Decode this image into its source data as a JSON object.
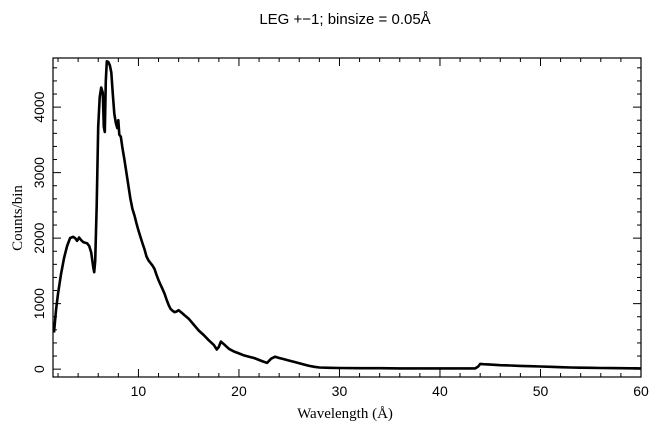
{
  "chart_data": {
    "type": "line",
    "title": "LEG +−1; binsize = 0.05Å",
    "xlabel": "Wavelength (Å)",
    "ylabel": "Counts/bin",
    "xlim": [
      1.5,
      60
    ],
    "ylim": [
      -120,
      4750
    ],
    "x_ticks": [
      10,
      20,
      30,
      40,
      50,
      60
    ],
    "x_tick_labels": [
      "10",
      "20",
      "30",
      "40",
      "50",
      "60"
    ],
    "y_ticks": [
      0,
      1000,
      2000,
      3000,
      4000
    ],
    "y_tick_labels": [
      "0",
      "1000",
      "2000",
      "3000",
      "4000"
    ],
    "grid": false,
    "series": [
      {
        "color": "#000000",
        "points": [
          [
            1.6,
            560
          ],
          [
            1.8,
            900
          ],
          [
            2.0,
            1150
          ],
          [
            2.3,
            1450
          ],
          [
            2.6,
            1700
          ],
          [
            2.9,
            1880
          ],
          [
            3.2,
            2000
          ],
          [
            3.5,
            2020
          ],
          [
            3.7,
            2000
          ],
          [
            3.9,
            1960
          ],
          [
            4.1,
            2010
          ],
          [
            4.3,
            1970
          ],
          [
            4.5,
            1940
          ],
          [
            4.7,
            1930
          ],
          [
            4.9,
            1920
          ],
          [
            5.1,
            1880
          ],
          [
            5.3,
            1780
          ],
          [
            5.5,
            1560
          ],
          [
            5.6,
            1480
          ],
          [
            5.7,
            1650
          ],
          [
            5.85,
            2500
          ],
          [
            6.0,
            3700
          ],
          [
            6.15,
            4150
          ],
          [
            6.3,
            4300
          ],
          [
            6.45,
            4220
          ],
          [
            6.55,
            3700
          ],
          [
            6.65,
            3620
          ],
          [
            6.75,
            4400
          ],
          [
            6.85,
            4700
          ],
          [
            7.0,
            4690
          ],
          [
            7.15,
            4640
          ],
          [
            7.3,
            4530
          ],
          [
            7.45,
            4200
          ],
          [
            7.6,
            3900
          ],
          [
            7.75,
            3760
          ],
          [
            7.9,
            3680
          ],
          [
            8.0,
            3800
          ],
          [
            8.1,
            3580
          ],
          [
            8.25,
            3550
          ],
          [
            8.4,
            3380
          ],
          [
            8.6,
            3200
          ],
          [
            8.8,
            3000
          ],
          [
            9.0,
            2800
          ],
          [
            9.2,
            2600
          ],
          [
            9.4,
            2450
          ],
          [
            9.6,
            2350
          ],
          [
            9.8,
            2230
          ],
          [
            10.0,
            2120
          ],
          [
            10.2,
            2020
          ],
          [
            10.4,
            1920
          ],
          [
            10.6,
            1830
          ],
          [
            10.8,
            1720
          ],
          [
            11.0,
            1660
          ],
          [
            11.2,
            1620
          ],
          [
            11.4,
            1580
          ],
          [
            11.6,
            1530
          ],
          [
            11.8,
            1440
          ],
          [
            12.0,
            1360
          ],
          [
            12.2,
            1290
          ],
          [
            12.4,
            1220
          ],
          [
            12.6,
            1150
          ],
          [
            12.8,
            1060
          ],
          [
            13.0,
            980
          ],
          [
            13.2,
            920
          ],
          [
            13.4,
            890
          ],
          [
            13.6,
            870
          ],
          [
            13.8,
            880
          ],
          [
            14.0,
            900
          ],
          [
            14.3,
            860
          ],
          [
            14.6,
            820
          ],
          [
            15.0,
            770
          ],
          [
            15.5,
            680
          ],
          [
            16.0,
            590
          ],
          [
            16.5,
            520
          ],
          [
            17.0,
            440
          ],
          [
            17.5,
            370
          ],
          [
            17.8,
            300
          ],
          [
            18.0,
            340
          ],
          [
            18.2,
            420
          ],
          [
            18.5,
            380
          ],
          [
            19.0,
            310
          ],
          [
            19.5,
            270
          ],
          [
            20.0,
            240
          ],
          [
            20.5,
            210
          ],
          [
            21.0,
            190
          ],
          [
            21.5,
            170
          ],
          [
            22.0,
            140
          ],
          [
            22.5,
            110
          ],
          [
            22.8,
            95
          ],
          [
            23.2,
            160
          ],
          [
            23.6,
            190
          ],
          [
            24.0,
            170
          ],
          [
            24.5,
            150
          ],
          [
            25.0,
            130
          ],
          [
            25.5,
            110
          ],
          [
            26.0,
            90
          ],
          [
            26.5,
            70
          ],
          [
            27.0,
            50
          ],
          [
            27.5,
            35
          ],
          [
            28.0,
            25
          ],
          [
            29.0,
            20
          ],
          [
            30.0,
            18
          ],
          [
            32.0,
            15
          ],
          [
            34.0,
            14
          ],
          [
            36.0,
            12
          ],
          [
            38.0,
            12
          ],
          [
            40.0,
            12
          ],
          [
            42.0,
            12
          ],
          [
            43.5,
            12
          ],
          [
            43.8,
            40
          ],
          [
            44.0,
            80
          ],
          [
            44.3,
            75
          ],
          [
            45.0,
            70
          ],
          [
            46.0,
            60
          ],
          [
            47.0,
            55
          ],
          [
            48.0,
            50
          ],
          [
            49.0,
            45
          ],
          [
            50.0,
            40
          ],
          [
            51.0,
            35
          ],
          [
            52.0,
            30
          ],
          [
            53.0,
            25
          ],
          [
            54.0,
            22
          ],
          [
            55.0,
            20
          ],
          [
            56.0,
            18
          ],
          [
            57.0,
            16
          ],
          [
            58.0,
            15
          ],
          [
            59.0,
            13
          ],
          [
            60.0,
            12
          ]
        ]
      }
    ]
  }
}
